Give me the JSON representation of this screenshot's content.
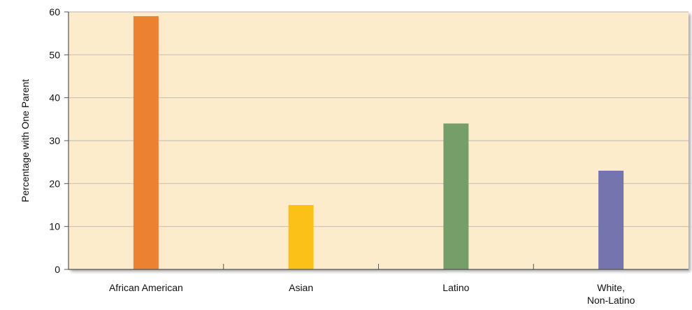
{
  "chart_data": {
    "type": "bar",
    "title": "",
    "xlabel": "",
    "ylabel": "Percentage with One Parent",
    "categories": [
      [
        "African American"
      ],
      [
        "Asian"
      ],
      [
        "Latino"
      ],
      [
        "White,",
        "Non-Latino"
      ]
    ],
    "values": [
      59,
      15,
      34,
      23
    ],
    "ylim": [
      0,
      60
    ],
    "yticks": [
      0,
      10,
      20,
      30,
      40,
      50,
      60
    ],
    "grid": true,
    "legend": "none",
    "colors": {
      "background": "#fdeccc",
      "gridline": "#c9c3b8",
      "axis": "#555555",
      "bars": [
        "#ec822f",
        "#fcc117",
        "#759e68",
        "#7474ae"
      ]
    }
  }
}
